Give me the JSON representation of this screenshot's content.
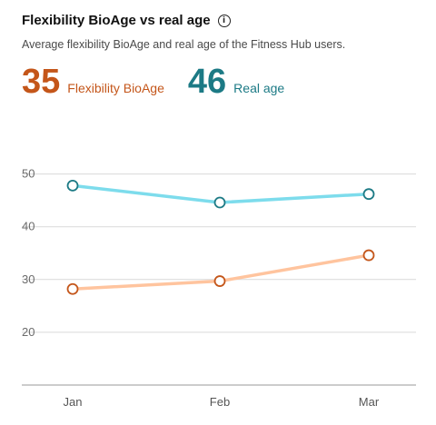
{
  "header": {
    "title": "Flexibility BioAge vs real age",
    "info_icon": "info-icon",
    "subtitle": "Average flexibility BioAge and real age of the Fitness Hub users."
  },
  "kpis": [
    {
      "value": "35",
      "label": "Flexibility BioAge",
      "color": "#c4561a"
    },
    {
      "value": "46",
      "label": "Real age",
      "color": "#1c7a85"
    }
  ],
  "chart_data": {
    "type": "line",
    "categories": [
      "Jan",
      "Feb",
      "Mar"
    ],
    "y_ticks": [
      20,
      30,
      40,
      50
    ],
    "ylim": [
      10,
      52
    ],
    "grid": true,
    "series": [
      {
        "name": "Real age",
        "values": [
          47.8,
          44.6,
          46.2
        ],
        "line_color": "#7ddcec",
        "marker_color": "#1c7a85"
      },
      {
        "name": "Flexibility BioAge",
        "values": [
          28.2,
          29.7,
          34.6
        ],
        "line_color": "#ffc49e",
        "marker_color": "#c4561a"
      }
    ]
  }
}
